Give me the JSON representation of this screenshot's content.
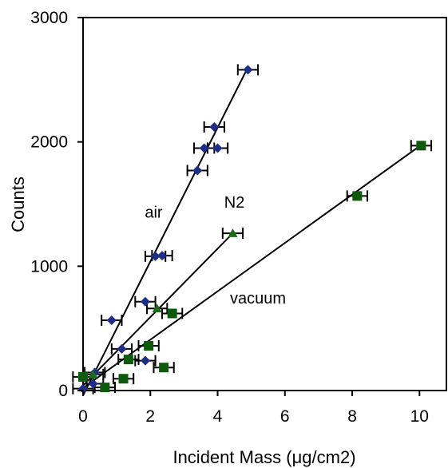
{
  "chart_data": {
    "type": "scatter",
    "xlabel": "Incident Mass (μg/cm2)",
    "ylabel": "Counts",
    "xlim": [
      0,
      10.8
    ],
    "ylim": [
      0,
      3000
    ],
    "xticks": [
      "0",
      "2",
      "4",
      "6",
      "8",
      "10"
    ],
    "yticks": [
      "0",
      "1000",
      "2000",
      "3000"
    ],
    "grid": false,
    "legend": "none",
    "annotations": [
      {
        "text": "air",
        "x": 2.1,
        "y": 1390
      },
      {
        "text": "N2",
        "x": 4.5,
        "y": 1470
      },
      {
        "text": "vacuum",
        "x": 5.2,
        "y": 700
      }
    ],
    "series": [
      {
        "marker": "diamond",
        "color": "#1f2d8a",
        "points": [
          {
            "x": 0.0,
            "y": 15,
            "xerr": 0.3
          },
          {
            "x": 0.3,
            "y": 55,
            "xerr": 0.3
          },
          {
            "x": 0.35,
            "y": 145,
            "xerr": 0.3
          },
          {
            "x": 0.85,
            "y": 565,
            "xerr": 0.3
          },
          {
            "x": 1.15,
            "y": 335,
            "xerr": 0.3
          },
          {
            "x": 1.85,
            "y": 240,
            "xerr": 0.3
          },
          {
            "x": 1.85,
            "y": 715,
            "xerr": 0.3
          },
          {
            "x": 2.15,
            "y": 1080,
            "xerr": 0.3
          },
          {
            "x": 2.35,
            "y": 1085,
            "xerr": 0.3
          },
          {
            "x": 3.4,
            "y": 1770,
            "xerr": 0.3
          },
          {
            "x": 3.6,
            "y": 1950,
            "xerr": 0.3
          },
          {
            "x": 4.0,
            "y": 1950,
            "xerr": 0.3
          },
          {
            "x": 3.9,
            "y": 2120,
            "xerr": 0.3
          },
          {
            "x": 4.9,
            "y": 2580,
            "xerr": 0.3
          }
        ],
        "fit": [
          [
            0.0,
            -40
          ],
          [
            4.9,
            2600
          ]
        ]
      },
      {
        "marker": "triangle",
        "color": "#1a6b1a",
        "points": [
          {
            "x": 0.3,
            "y": 130,
            "xerr": 0.3
          },
          {
            "x": 2.2,
            "y": 660,
            "xerr": 0.3
          },
          {
            "x": 4.45,
            "y": 1265,
            "xerr": 0.3
          }
        ],
        "fit": [
          [
            0.0,
            40
          ],
          [
            4.45,
            1265
          ]
        ]
      },
      {
        "marker": "square",
        "color": "#0d5a0d",
        "points": [
          {
            "x": 0.0,
            "y": 110,
            "xerr": 0.3
          },
          {
            "x": 0.65,
            "y": 25,
            "xerr": 0.3
          },
          {
            "x": 1.2,
            "y": 95,
            "xerr": 0.3
          },
          {
            "x": 1.35,
            "y": 250,
            "xerr": 0.3
          },
          {
            "x": 1.95,
            "y": 360,
            "xerr": 0.3
          },
          {
            "x": 2.4,
            "y": 185,
            "xerr": 0.3
          },
          {
            "x": 2.65,
            "y": 620,
            "xerr": 0.3
          },
          {
            "x": 8.15,
            "y": 1565,
            "xerr": 0.3
          },
          {
            "x": 10.05,
            "y": 1970,
            "xerr": 0.3
          }
        ],
        "fit": [
          [
            0.0,
            20
          ],
          [
            10.05,
            1975
          ]
        ]
      }
    ]
  }
}
